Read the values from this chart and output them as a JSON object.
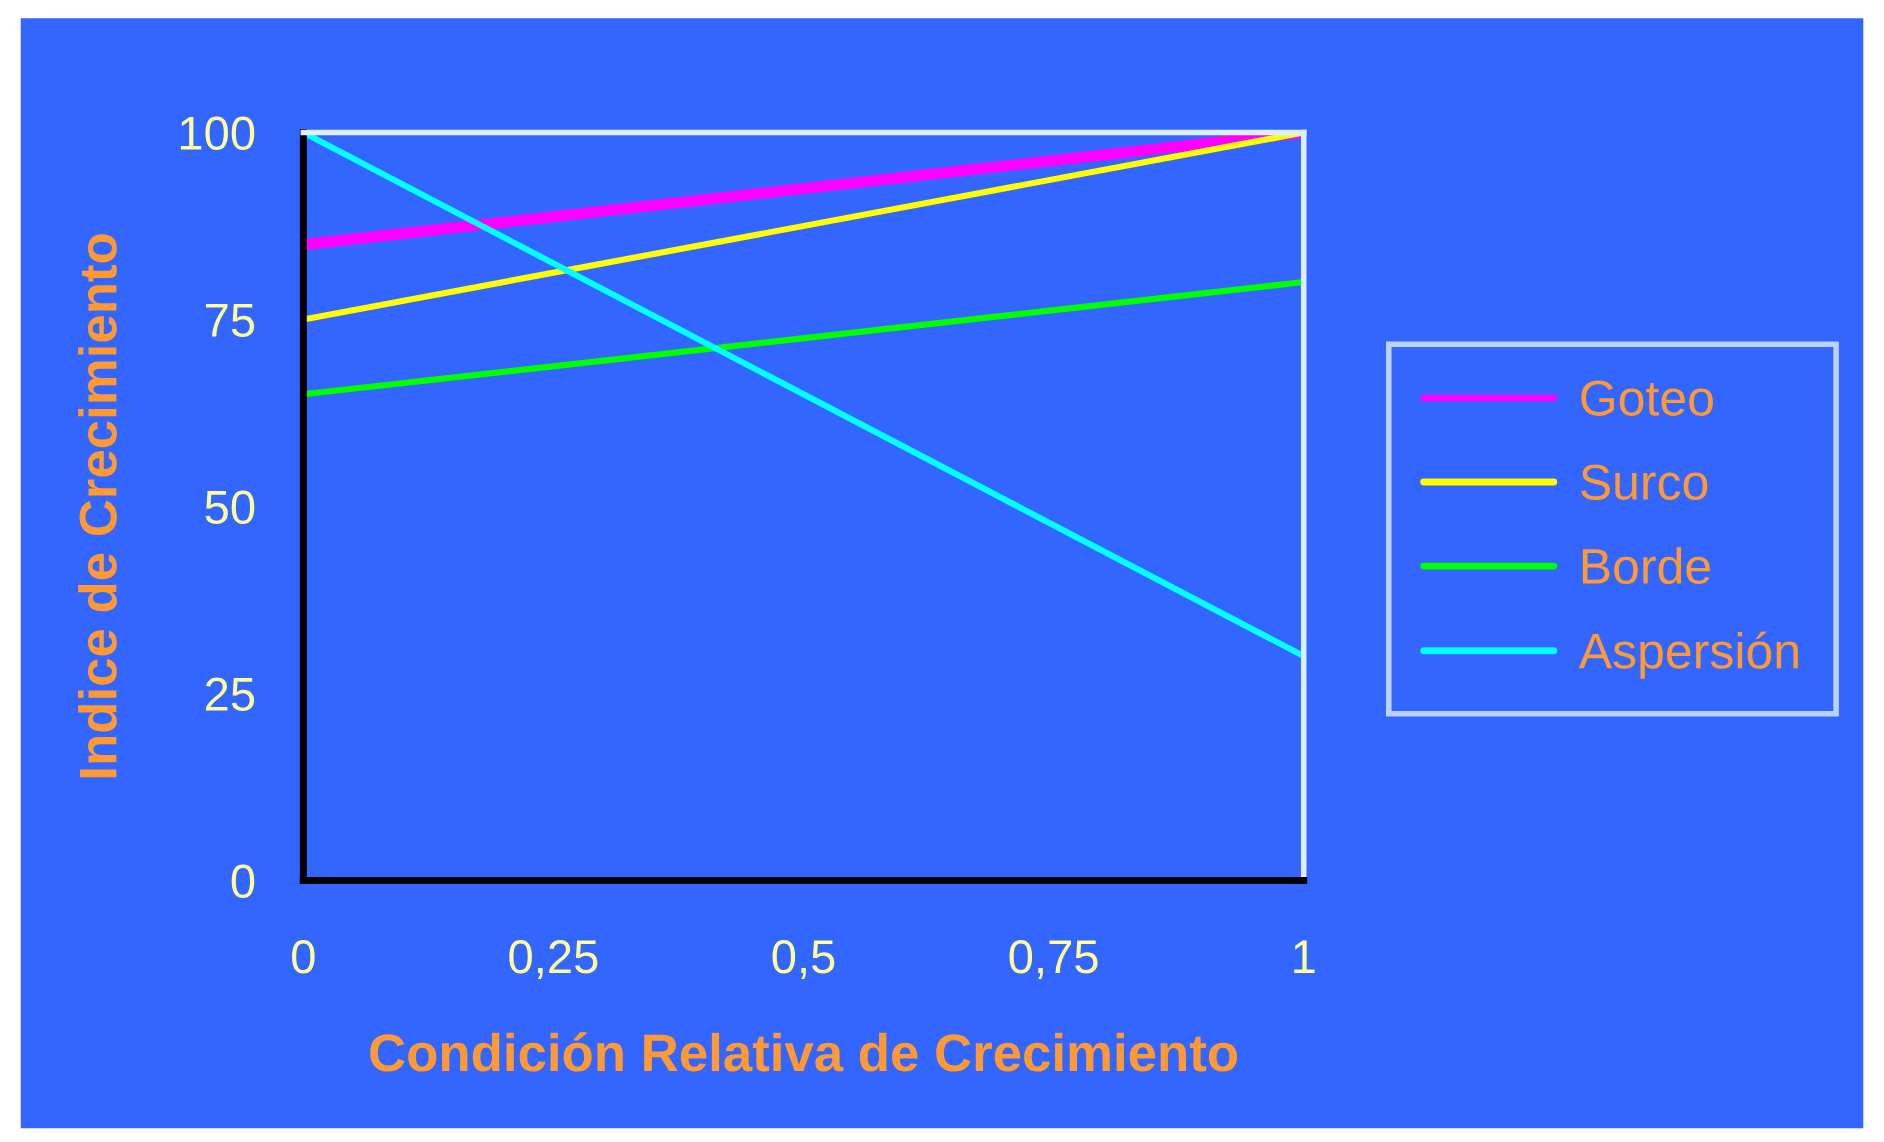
{
  "chart_data": {
    "type": "line",
    "xlabel": "Condición Relativa de Crecimiento",
    "ylabel": "Indice de Crecimiento",
    "x": [
      0,
      1
    ],
    "series": [
      {
        "name": "Goteo",
        "color": "#ff00ff",
        "values": [
          85,
          100
        ]
      },
      {
        "name": "Surco",
        "color": "#ffff00",
        "values": [
          75,
          100
        ]
      },
      {
        "name": "Borde",
        "color": "#00ff00",
        "values": [
          65,
          80
        ]
      },
      {
        "name": "Aspersión",
        "color": "#00ffff",
        "values": [
          100,
          30
        ]
      }
    ],
    "xlim": [
      0,
      1
    ],
    "xticks": [
      {
        "value": 0,
        "label": "0"
      },
      {
        "value": 0.25,
        "label": "0,25"
      },
      {
        "value": 0.5,
        "label": "0,5"
      },
      {
        "value": 0.75,
        "label": "0,75"
      },
      {
        "value": 1,
        "label": "1"
      }
    ],
    "ylim": [
      0,
      100
    ],
    "yticks": [
      0,
      25,
      50,
      75,
      100
    ],
    "grid": false,
    "legend": "right",
    "marker": "none",
    "line_style": "solid"
  }
}
